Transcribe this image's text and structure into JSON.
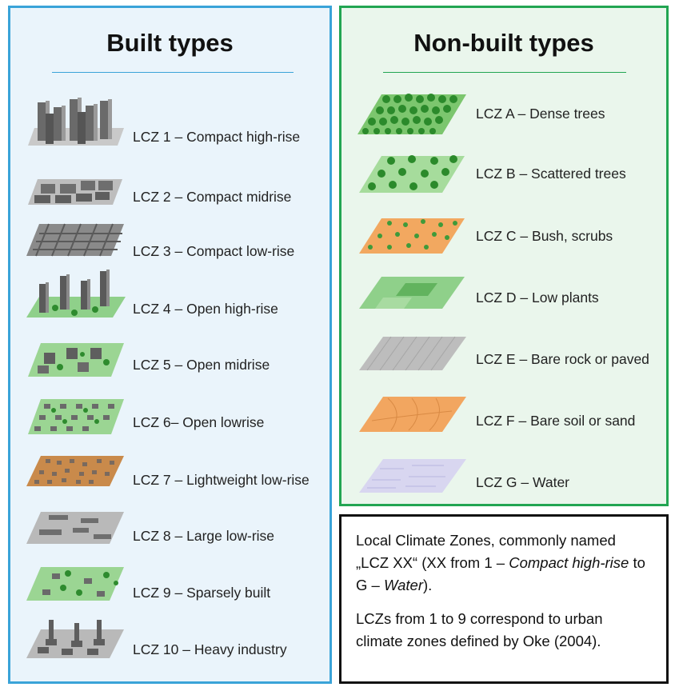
{
  "built": {
    "title": "Built types",
    "items": [
      {
        "label": "LCZ 1 – Compact high-rise",
        "icon": "compact-high-rise-icon"
      },
      {
        "label": "LCZ 2 – Compact midrise",
        "icon": "compact-midrise-icon"
      },
      {
        "label": "LCZ 3 – Compact low-rise",
        "icon": "compact-low-rise-icon"
      },
      {
        "label": "LCZ 4 – Open high-rise",
        "icon": "open-high-rise-icon"
      },
      {
        "label": "LCZ 5 – Open midrise",
        "icon": "open-midrise-icon"
      },
      {
        "label": "LCZ 6– Open lowrise",
        "icon": "open-lowrise-icon"
      },
      {
        "label": "LCZ 7 – Lightweight low-rise",
        "icon": "lightweight-low-rise-icon"
      },
      {
        "label": "LCZ 8 – Large low-rise",
        "icon": "large-low-rise-icon"
      },
      {
        "label": "LCZ 9 – Sparsely built",
        "icon": "sparsely-built-icon"
      },
      {
        "label": "LCZ 10 – Heavy industry",
        "icon": "heavy-industry-icon"
      }
    ]
  },
  "nonbuilt": {
    "title": "Non-built types",
    "items": [
      {
        "label": "LCZ A – Dense trees",
        "icon": "dense-trees-icon"
      },
      {
        "label": "LCZ B – Scattered trees",
        "icon": "scattered-trees-icon"
      },
      {
        "label": "LCZ C – Bush, scrubs",
        "icon": "bush-scrub-icon"
      },
      {
        "label": "LCZ D – Low plants",
        "icon": "low-plants-icon"
      },
      {
        "label": "LCZ E – Bare rock or paved",
        "icon": "bare-rock-paved-icon"
      },
      {
        "label": "LCZ F – Bare soil or sand",
        "icon": "bare-soil-sand-icon"
      },
      {
        "label": "LCZ G – Water",
        "icon": "water-icon"
      }
    ]
  },
  "note": {
    "p1_a": "Local Climate Zones, commonly named „LCZ XX“ (XX from 1 – ",
    "p1_b": "Compact high-rise",
    "p1_c": " to G – ",
    "p1_d": "Water",
    "p1_e": ").",
    "p2": "LCZs from 1 to 9 correspond to urban climate zones defined by Oke (2004)."
  },
  "colors": {
    "built_border": "#3aa3d8",
    "built_bg": "#eaf4fb",
    "nonbuilt_border": "#22a552",
    "nonbuilt_bg": "#eaf6ec",
    "note_border": "#111111"
  }
}
